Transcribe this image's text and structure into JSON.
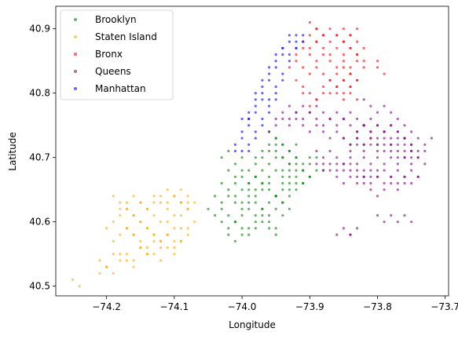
{
  "chart_data": {
    "type": "scatter",
    "title": "",
    "xlabel": "Longitude",
    "ylabel": "Latitude",
    "xlim": [
      -74.275,
      -73.695
    ],
    "ylim": [
      40.485,
      40.935
    ],
    "xticks": [
      -74.2,
      -74.1,
      -74.0,
      -73.9,
      -73.8,
      -73.7
    ],
    "xtick_labels": [
      "−74.2",
      "−74.1",
      "−74.0",
      "−73.9",
      "−73.8",
      "−73.7"
    ],
    "yticks": [
      40.5,
      40.6,
      40.7,
      40.8,
      40.9
    ],
    "ytick_labels": [
      "40.5",
      "40.6",
      "40.7",
      "40.8",
      "40.9"
    ],
    "grid": false,
    "legend": {
      "placement": "top-left",
      "entries": [
        "Brooklyn",
        "Staten Island",
        "Bronx",
        "Queens",
        "Manhattan"
      ]
    },
    "series": [
      {
        "name": "Brooklyn",
        "color": "#008000",
        "x": [
          -74.03,
          -74.02,
          -74.01,
          -74.0,
          -73.99,
          -73.98,
          -73.97,
          -73.96,
          -73.95,
          -73.94,
          -73.93,
          -73.92,
          -73.91,
          -73.9,
          -73.89,
          -73.88,
          -74.02,
          -74.01,
          -74.0,
          -73.99,
          -73.98,
          -73.97,
          -73.96,
          -73.95,
          -73.94,
          -73.93,
          -73.92,
          -73.91,
          -73.9,
          -74.03,
          -74.02,
          -74.01,
          -74.0,
          -73.99,
          -73.98,
          -73.97,
          -73.96,
          -73.95,
          -73.94,
          -73.93,
          -73.92,
          -74.04,
          -74.03,
          -74.02,
          -74.01,
          -74.0,
          -73.99,
          -73.98,
          -73.97,
          -73.96,
          -73.95,
          -74.05,
          -74.04,
          -74.03,
          -74.02,
          -74.01,
          -74.0,
          -73.99,
          -73.98,
          -73.97,
          -73.96,
          -73.95,
          -73.94,
          -74.03,
          -74.02,
          -74.01,
          -74.0,
          -73.99,
          -73.98,
          -73.97,
          -73.96,
          -73.95,
          -74.02,
          -74.01,
          -74.0,
          -73.99,
          -73.98,
          -73.97,
          -73.96,
          -73.95,
          -73.94,
          -73.93,
          -74.01,
          -74.0,
          -73.99,
          -73.98,
          -73.97,
          -73.96,
          -73.95,
          -73.94,
          -73.93,
          -73.92,
          -73.91,
          -74.0,
          -73.99,
          -73.98,
          -73.97,
          -73.96,
          -73.95,
          -73.94,
          -73.93,
          -73.92,
          -73.98,
          -73.97,
          -73.96,
          -73.95,
          -73.94,
          -73.93,
          -73.96,
          -73.95,
          -73.94,
          -73.93,
          -73.92,
          -73.95,
          -73.94,
          -73.93,
          -73.92,
          -73.91,
          -73.9,
          -73.94,
          -73.93,
          -73.92,
          -73.91,
          -73.9,
          -73.89
        ],
        "y": [
          40.7,
          40.71,
          40.69,
          40.7,
          40.68,
          40.69,
          40.7,
          40.71,
          40.72,
          40.7,
          40.69,
          40.7,
          40.68,
          40.69,
          40.7,
          40.68,
          40.68,
          40.67,
          40.68,
          40.66,
          40.67,
          40.68,
          40.69,
          40.7,
          40.68,
          40.67,
          40.68,
          40.66,
          40.67,
          40.66,
          40.65,
          40.66,
          40.65,
          40.64,
          40.65,
          40.66,
          40.67,
          40.68,
          40.66,
          40.65,
          40.66,
          40.64,
          40.63,
          40.64,
          40.63,
          40.62,
          40.63,
          40.64,
          40.65,
          40.66,
          40.64,
          40.62,
          40.61,
          40.62,
          40.61,
          40.6,
          40.61,
          40.62,
          40.63,
          40.62,
          40.61,
          40.62,
          40.63,
          40.6,
          40.59,
          40.6,
          40.59,
          40.58,
          40.59,
          40.6,
          40.59,
          40.58,
          40.58,
          40.57,
          40.58,
          40.59,
          40.6,
          40.61,
          40.6,
          40.59,
          40.61,
          40.62,
          40.64,
          40.63,
          40.65,
          40.61,
          40.62,
          40.63,
          40.64,
          40.65,
          40.66,
          40.67,
          40.66,
          40.67,
          40.66,
          40.67,
          40.66,
          40.65,
          40.64,
          40.63,
          40.64,
          40.65,
          40.7,
          40.71,
          40.72,
          40.73,
          40.72,
          40.71,
          40.74,
          40.73,
          40.72,
          40.71,
          40.72,
          40.71,
          40.7,
          40.69,
          40.7,
          40.69,
          40.7,
          40.67,
          40.68,
          40.69,
          40.68,
          40.67,
          40.68
        ]
      },
      {
        "name": "Staten Island",
        "color": "#ffa500",
        "x": [
          -74.25,
          -74.24,
          -74.2,
          -74.21,
          -74.19,
          -74.18,
          -74.17,
          -74.16,
          -74.15,
          -74.14,
          -74.13,
          -74.12,
          -74.11,
          -74.1,
          -74.09,
          -74.08,
          -74.07,
          -74.19,
          -74.18,
          -74.17,
          -74.16,
          -74.15,
          -74.14,
          -74.13,
          -74.12,
          -74.11,
          -74.1,
          -74.09,
          -74.08,
          -74.2,
          -74.19,
          -74.18,
          -74.17,
          -74.16,
          -74.15,
          -74.14,
          -74.13,
          -74.12,
          -74.11,
          -74.1,
          -74.09,
          -74.08,
          -74.18,
          -74.17,
          -74.16,
          -74.15,
          -74.14,
          -74.13,
          -74.12,
          -74.11,
          -74.1,
          -74.09,
          -74.08,
          -74.19,
          -74.18,
          -74.17,
          -74.16,
          -74.15,
          -74.14,
          -74.13,
          -74.12,
          -74.11,
          -74.1,
          -74.09,
          -74.17,
          -74.16,
          -74.15,
          -74.14,
          -74.13,
          -74.12,
          -74.11,
          -74.1,
          -74.09,
          -74.08,
          -74.21,
          -74.2,
          -74.19,
          -74.18,
          -74.17,
          -74.16,
          -74.15,
          -74.14,
          -74.13,
          -74.12,
          -74.11,
          -74.1,
          -74.09,
          -74.08,
          -74.07
        ],
        "y": [
          40.51,
          40.5,
          40.53,
          40.52,
          40.55,
          40.54,
          40.55,
          40.54,
          40.56,
          40.55,
          40.57,
          40.56,
          40.58,
          40.57,
          40.59,
          40.58,
          40.6,
          40.57,
          40.58,
          40.59,
          40.58,
          40.6,
          40.59,
          40.61,
          40.6,
          40.62,
          40.61,
          40.63,
          40.62,
          40.59,
          40.6,
          40.61,
          40.62,
          40.61,
          40.63,
          40.62,
          40.64,
          40.63,
          40.65,
          40.64,
          40.63,
          40.64,
          40.62,
          40.63,
          40.64,
          40.63,
          40.62,
          40.63,
          40.64,
          40.63,
          40.64,
          40.65,
          40.63,
          40.64,
          40.63,
          40.62,
          40.61,
          40.6,
          40.59,
          40.58,
          40.57,
          40.58,
          40.56,
          40.57,
          40.59,
          40.58,
          40.57,
          40.56,
          40.55,
          40.54,
          40.56,
          40.55,
          40.57,
          40.59,
          40.54,
          40.53,
          40.52,
          40.55,
          40.54,
          40.53,
          40.56,
          40.55,
          40.58,
          40.57,
          40.6,
          40.59,
          40.61,
          40.62,
          40.63
        ]
      },
      {
        "name": "Bronx",
        "color": "#ff0000",
        "x": [
          -73.93,
          -73.92,
          -73.91,
          -73.9,
          -73.89,
          -73.88,
          -73.87,
          -73.86,
          -73.85,
          -73.84,
          -73.83,
          -73.92,
          -73.91,
          -73.9,
          -73.89,
          -73.88,
          -73.87,
          -73.86,
          -73.85,
          -73.84,
          -73.83,
          -73.82,
          -73.91,
          -73.9,
          -73.89,
          -73.88,
          -73.87,
          -73.86,
          -73.85,
          -73.84,
          -73.83,
          -73.82,
          -73.9,
          -73.89,
          -73.88,
          -73.87,
          -73.86,
          -73.85,
          -73.84,
          -73.83,
          -73.89,
          -73.88,
          -73.87,
          -73.86,
          -73.85,
          -73.84,
          -73.83,
          -73.88,
          -73.87,
          -73.86,
          -73.85,
          -73.84,
          -73.87,
          -73.86,
          -73.85,
          -73.84,
          -73.86,
          -73.85,
          -73.84,
          -73.83,
          -73.92,
          -73.91,
          -73.9,
          -73.89,
          -73.88,
          -73.9,
          -73.89,
          -73.85,
          -73.84,
          -73.83,
          -73.82,
          -73.85,
          -73.84,
          -73.83,
          -73.8,
          -73.8,
          -73.79,
          -73.9,
          -73.89,
          -73.91
        ],
        "y": [
          40.84,
          40.85,
          40.84,
          40.83,
          40.84,
          40.83,
          40.82,
          40.83,
          40.82,
          40.83,
          40.82,
          40.86,
          40.87,
          40.86,
          40.85,
          40.86,
          40.85,
          40.84,
          40.85,
          40.84,
          40.85,
          40.84,
          40.88,
          40.87,
          40.88,
          40.87,
          40.86,
          40.87,
          40.86,
          40.87,
          40.86,
          40.87,
          40.89,
          40.88,
          40.89,
          40.88,
          40.89,
          40.88,
          40.89,
          40.88,
          40.9,
          40.89,
          40.9,
          40.89,
          40.9,
          40.89,
          40.9,
          40.81,
          40.8,
          40.81,
          40.8,
          40.81,
          40.82,
          40.81,
          40.82,
          40.81,
          40.8,
          40.79,
          40.8,
          40.79,
          40.82,
          40.81,
          40.8,
          40.79,
          40.8,
          40.91,
          40.9,
          40.88,
          40.87,
          40.86,
          40.85,
          40.84,
          40.83,
          40.82,
          40.85,
          40.84,
          40.83,
          40.78,
          40.79,
          40.8
        ]
      },
      {
        "name": "Queens",
        "color": "#800080",
        "x": [
          -73.96,
          -73.95,
          -73.94,
          -73.93,
          -73.92,
          -73.91,
          -73.9,
          -73.89,
          -73.88,
          -73.87,
          -73.86,
          -73.85,
          -73.84,
          -73.83,
          -73.82,
          -73.81,
          -73.8,
          -73.79,
          -73.78,
          -73.77,
          -73.76,
          -73.75,
          -73.74,
          -73.73,
          -73.95,
          -73.94,
          -73.93,
          -73.92,
          -73.91,
          -73.9,
          -73.89,
          -73.88,
          -73.87,
          -73.86,
          -73.85,
          -73.84,
          -73.83,
          -73.82,
          -73.81,
          -73.8,
          -73.79,
          -73.78,
          -73.77,
          -73.76,
          -73.75,
          -73.74,
          -73.93,
          -73.92,
          -73.91,
          -73.9,
          -73.89,
          -73.88,
          -73.87,
          -73.86,
          -73.85,
          -73.84,
          -73.83,
          -73.82,
          -73.81,
          -73.8,
          -73.79,
          -73.78,
          -73.77,
          -73.76,
          -73.75,
          -73.74,
          -73.89,
          -73.88,
          -73.87,
          -73.86,
          -73.85,
          -73.84,
          -73.83,
          -73.82,
          -73.81,
          -73.8,
          -73.79,
          -73.78,
          -73.77,
          -73.76,
          -73.75,
          -73.74,
          -73.73,
          -73.88,
          -73.87,
          -73.86,
          -73.85,
          -73.84,
          -73.83,
          -73.82,
          -73.81,
          -73.8,
          -73.79,
          -73.78,
          -73.77,
          -73.76,
          -73.75,
          -73.74,
          -73.86,
          -73.85,
          -73.84,
          -73.83,
          -73.82,
          -73.81,
          -73.8,
          -73.79,
          -73.78,
          -73.77,
          -73.76,
          -73.75,
          -73.74,
          -73.84,
          -73.83,
          -73.82,
          -73.81,
          -73.8,
          -73.79,
          -73.78,
          -73.77,
          -73.76,
          -73.75,
          -73.82,
          -73.81,
          -73.8,
          -73.79,
          -73.78,
          -73.77,
          -73.76,
          -73.85,
          -73.84,
          -73.83,
          -73.82,
          -73.81,
          -73.8,
          -73.79,
          -73.78,
          -73.77,
          -73.76,
          -73.75,
          -73.83,
          -73.82,
          -73.81,
          -73.8,
          -73.79,
          -73.78,
          -73.77,
          -73.76,
          -73.75,
          -73.73,
          -73.72,
          -73.84,
          -73.83,
          -73.8,
          -73.79,
          -73.78,
          -73.77,
          -73.76,
          -73.75,
          -73.86,
          -73.85,
          -73.84,
          -73.82,
          -73.81,
          -73.8,
          -73.79,
          -73.78,
          -73.77,
          -73.76,
          -73.89,
          -73.88,
          -73.87,
          -73.86,
          -73.85,
          -73.84,
          -73.83,
          -73.82,
          -73.81,
          -73.8
        ],
        "y": [
          40.74,
          40.75,
          40.76,
          40.75,
          40.76,
          40.75,
          40.74,
          40.75,
          40.74,
          40.73,
          40.74,
          40.73,
          40.72,
          40.73,
          40.72,
          40.73,
          40.72,
          40.71,
          40.72,
          40.71,
          40.7,
          40.71,
          40.7,
          40.71,
          40.76,
          40.77,
          40.76,
          40.77,
          40.76,
          40.77,
          40.76,
          40.75,
          40.76,
          40.75,
          40.76,
          40.75,
          40.74,
          40.75,
          40.74,
          40.73,
          40.74,
          40.73,
          40.72,
          40.73,
          40.72,
          40.71,
          40.78,
          40.77,
          40.78,
          40.77,
          40.78,
          40.77,
          40.76,
          40.77,
          40.76,
          40.77,
          40.76,
          40.75,
          40.76,
          40.75,
          40.74,
          40.75,
          40.74,
          40.73,
          40.74,
          40.73,
          40.71,
          40.7,
          40.71,
          40.7,
          40.69,
          40.7,
          40.69,
          40.7,
          40.69,
          40.7,
          40.69,
          40.7,
          40.69,
          40.7,
          40.69,
          40.7,
          40.69,
          40.69,
          40.68,
          40.69,
          40.68,
          40.69,
          40.68,
          40.67,
          40.68,
          40.67,
          40.68,
          40.67,
          40.68,
          40.67,
          40.68,
          40.67,
          40.67,
          40.66,
          40.67,
          40.66,
          40.67,
          40.66,
          40.67,
          40.66,
          40.67,
          40.66,
          40.67,
          40.66,
          40.67,
          40.71,
          40.72,
          40.71,
          40.72,
          40.71,
          40.72,
          40.71,
          40.7,
          40.71,
          40.7,
          40.79,
          40.78,
          40.77,
          40.78,
          40.77,
          40.76,
          40.75,
          40.73,
          40.72,
          40.73,
          40.72,
          40.73,
          40.72,
          40.73,
          40.72,
          40.73,
          40.72,
          40.71,
          40.74,
          40.75,
          40.74,
          40.75,
          40.74,
          40.75,
          40.74,
          40.73,
          40.72,
          40.72,
          40.73,
          40.58,
          40.59,
          40.61,
          40.6,
          40.61,
          40.6,
          40.61,
          40.6,
          40.58,
          40.59,
          40.58,
          40.66,
          40.65,
          40.64,
          40.65,
          40.66,
          40.65,
          40.66,
          40.69,
          40.68,
          40.69,
          40.68,
          40.69,
          40.68,
          40.67,
          40.68,
          40.67,
          40.68
        ]
      },
      {
        "name": "Manhattan",
        "color": "#0000ff",
        "x": [
          -74.01,
          -74.0,
          -73.99,
          -74.01,
          -74.0,
          -73.99,
          -73.98,
          -74.0,
          -73.99,
          -73.98,
          -73.97,
          -74.0,
          -73.99,
          -73.98,
          -73.97,
          -73.96,
          -73.99,
          -73.98,
          -73.97,
          -73.96,
          -73.95,
          -73.99,
          -73.98,
          -73.97,
          -73.96,
          -73.95,
          -73.98,
          -73.97,
          -73.96,
          -73.95,
          -73.94,
          -73.97,
          -73.96,
          -73.95,
          -73.94,
          -73.96,
          -73.95,
          -73.94,
          -73.93,
          -73.95,
          -73.94,
          -73.93,
          -73.92,
          -73.94,
          -73.93,
          -73.92,
          -73.93,
          -73.92,
          -73.91,
          -73.92,
          -73.91
        ],
        "y": [
          40.71,
          40.71,
          40.71,
          40.72,
          40.73,
          40.72,
          40.73,
          40.74,
          40.75,
          40.74,
          40.75,
          40.76,
          40.76,
          40.77,
          40.76,
          40.77,
          40.77,
          40.78,
          40.79,
          40.78,
          40.79,
          40.76,
          40.79,
          40.8,
          40.79,
          40.8,
          40.8,
          40.81,
          40.82,
          40.81,
          40.82,
          40.82,
          40.83,
          40.84,
          40.83,
          40.84,
          40.85,
          40.86,
          40.85,
          40.86,
          40.87,
          40.86,
          40.87,
          40.87,
          40.88,
          40.87,
          40.89,
          40.88,
          40.89,
          40.89,
          40.88
        ]
      }
    ]
  }
}
